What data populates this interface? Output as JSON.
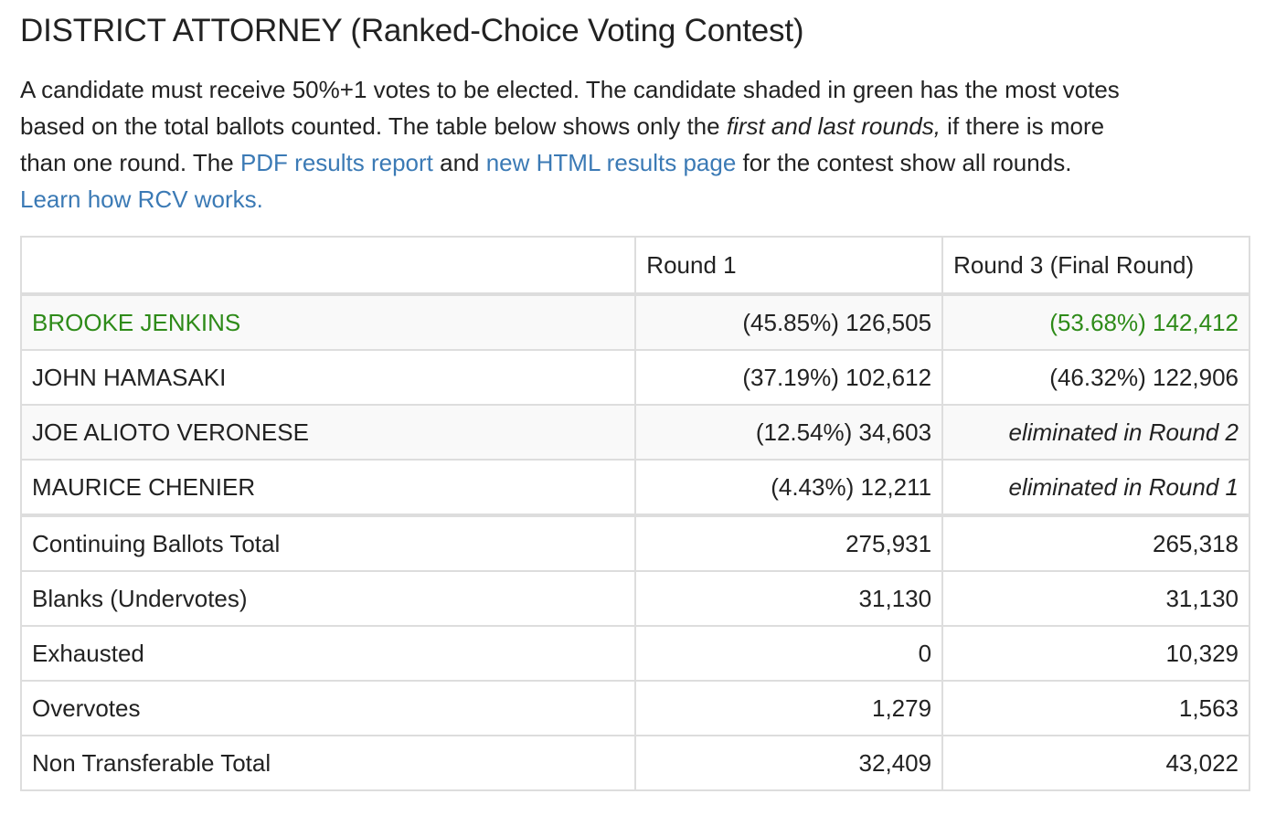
{
  "title": "DISTRICT ATTORNEY (Ranked-Choice Voting Contest)",
  "intro": {
    "line1": "A candidate must receive 50%+1 votes to be elected. The candidate shaded in green has the most votes",
    "line2_a": "based on the total ballots counted. The table below shows only the ",
    "line2_em": "first and last rounds,",
    "line2_b": " if there is more",
    "line3_a": "than one round. The ",
    "pdf_link": "PDF results report",
    "line3_b": " and ",
    "html_link": "new HTML results page",
    "line3_c": " for the contest show all rounds.",
    "learn_link": "Learn how RCV works."
  },
  "table": {
    "headers": [
      "",
      "Round 1",
      "Round 3 (Final Round)"
    ],
    "candidates": [
      {
        "name": "BROOKE JENKINS",
        "round1": "(45.85%) 126,505",
        "round3": "(53.68%) 142,412",
        "winner": true
      },
      {
        "name": "JOHN HAMASAKI",
        "round1": "(37.19%) 102,612",
        "round3": "(46.32%) 122,906"
      },
      {
        "name": "JOE ALIOTO VERONESE",
        "round1": "(12.54%) 34,603",
        "round3": "eliminated in Round 2"
      },
      {
        "name": "MAURICE CHENIER",
        "round1": "(4.43%) 12,211",
        "round3": "eliminated in Round 1"
      }
    ],
    "totals": [
      {
        "label": "Continuing Ballots Total",
        "round1": "275,931",
        "round3": "265,318"
      },
      {
        "label": "Blanks (Undervotes)",
        "round1": "31,130",
        "round3": "31,130"
      },
      {
        "label": "Exhausted",
        "round1": "0",
        "round3": "10,329"
      },
      {
        "label": "Overvotes",
        "round1": "1,279",
        "round3": "1,563"
      },
      {
        "label": "Non Transferable Total",
        "round1": "32,409",
        "round3": "43,022"
      }
    ]
  },
  "colors": {
    "winner": "#2e8b19",
    "link": "#3b7ab5",
    "border": "#dddddd",
    "shade": "#f9f9f9"
  }
}
